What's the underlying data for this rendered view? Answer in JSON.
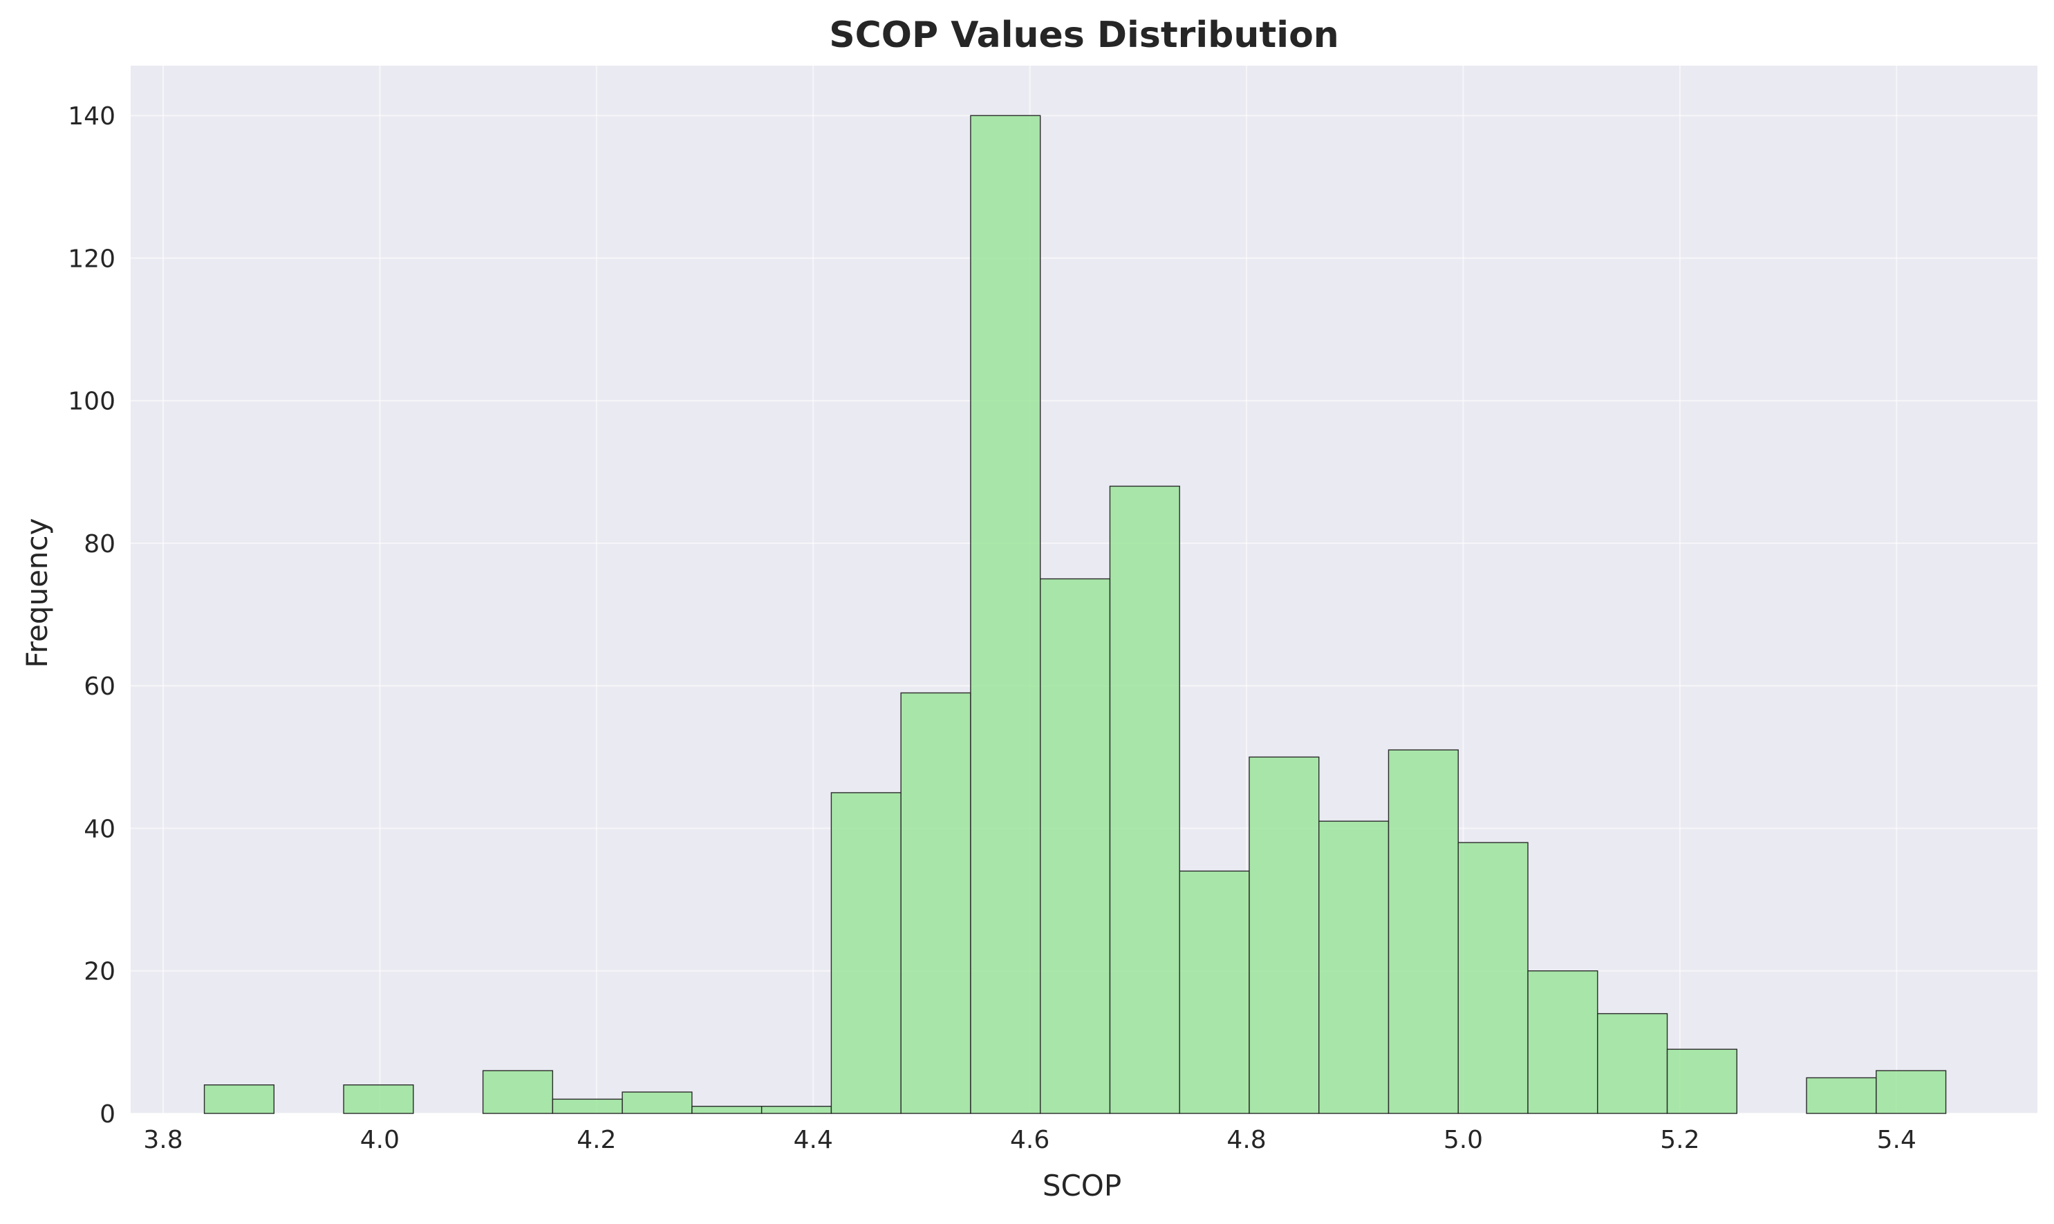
{
  "chart_data": {
    "type": "bar",
    "title": "SCOP Values Distribution",
    "xlabel": "SCOP",
    "ylabel": "Frequency",
    "xlim": [
      3.77,
      5.53
    ],
    "ylim": [
      0,
      147
    ],
    "xticks": [
      3.8,
      4.0,
      4.2,
      4.4,
      4.6,
      4.8,
      5.0,
      5.2,
      5.4
    ],
    "xtick_labels": [
      "3.8",
      "4.0",
      "4.2",
      "4.4",
      "4.6",
      "4.8",
      "5.0",
      "5.2",
      "5.4"
    ],
    "yticks": [
      0,
      20,
      40,
      60,
      80,
      100,
      120,
      140
    ],
    "ytick_labels": [
      "0",
      "20",
      "40",
      "60",
      "80",
      "100",
      "120",
      "140"
    ],
    "bin_edges": [
      3.838,
      3.9023,
      3.9666,
      4.0309,
      4.0952,
      4.1595,
      4.2238,
      4.2881,
      4.3524,
      4.4167,
      4.481,
      4.5453,
      4.6096,
      4.6739,
      4.7382,
      4.8025,
      4.8668,
      4.9311,
      4.9954,
      5.0597,
      5.124,
      5.1883,
      5.2526,
      5.3169,
      5.3812,
      5.4455
    ],
    "values": [
      4,
      0,
      4,
      0,
      6,
      2,
      3,
      1,
      1,
      45,
      59,
      140,
      75,
      88,
      34,
      50,
      41,
      51,
      38,
      20,
      14,
      9,
      0,
      5,
      6
    ],
    "grid": true,
    "colors": {
      "bar_fill": "#90e38f",
      "bar_edge": "#2b2b2b",
      "plot_background": "#eaeaf2",
      "grid": "#ffffff"
    }
  }
}
